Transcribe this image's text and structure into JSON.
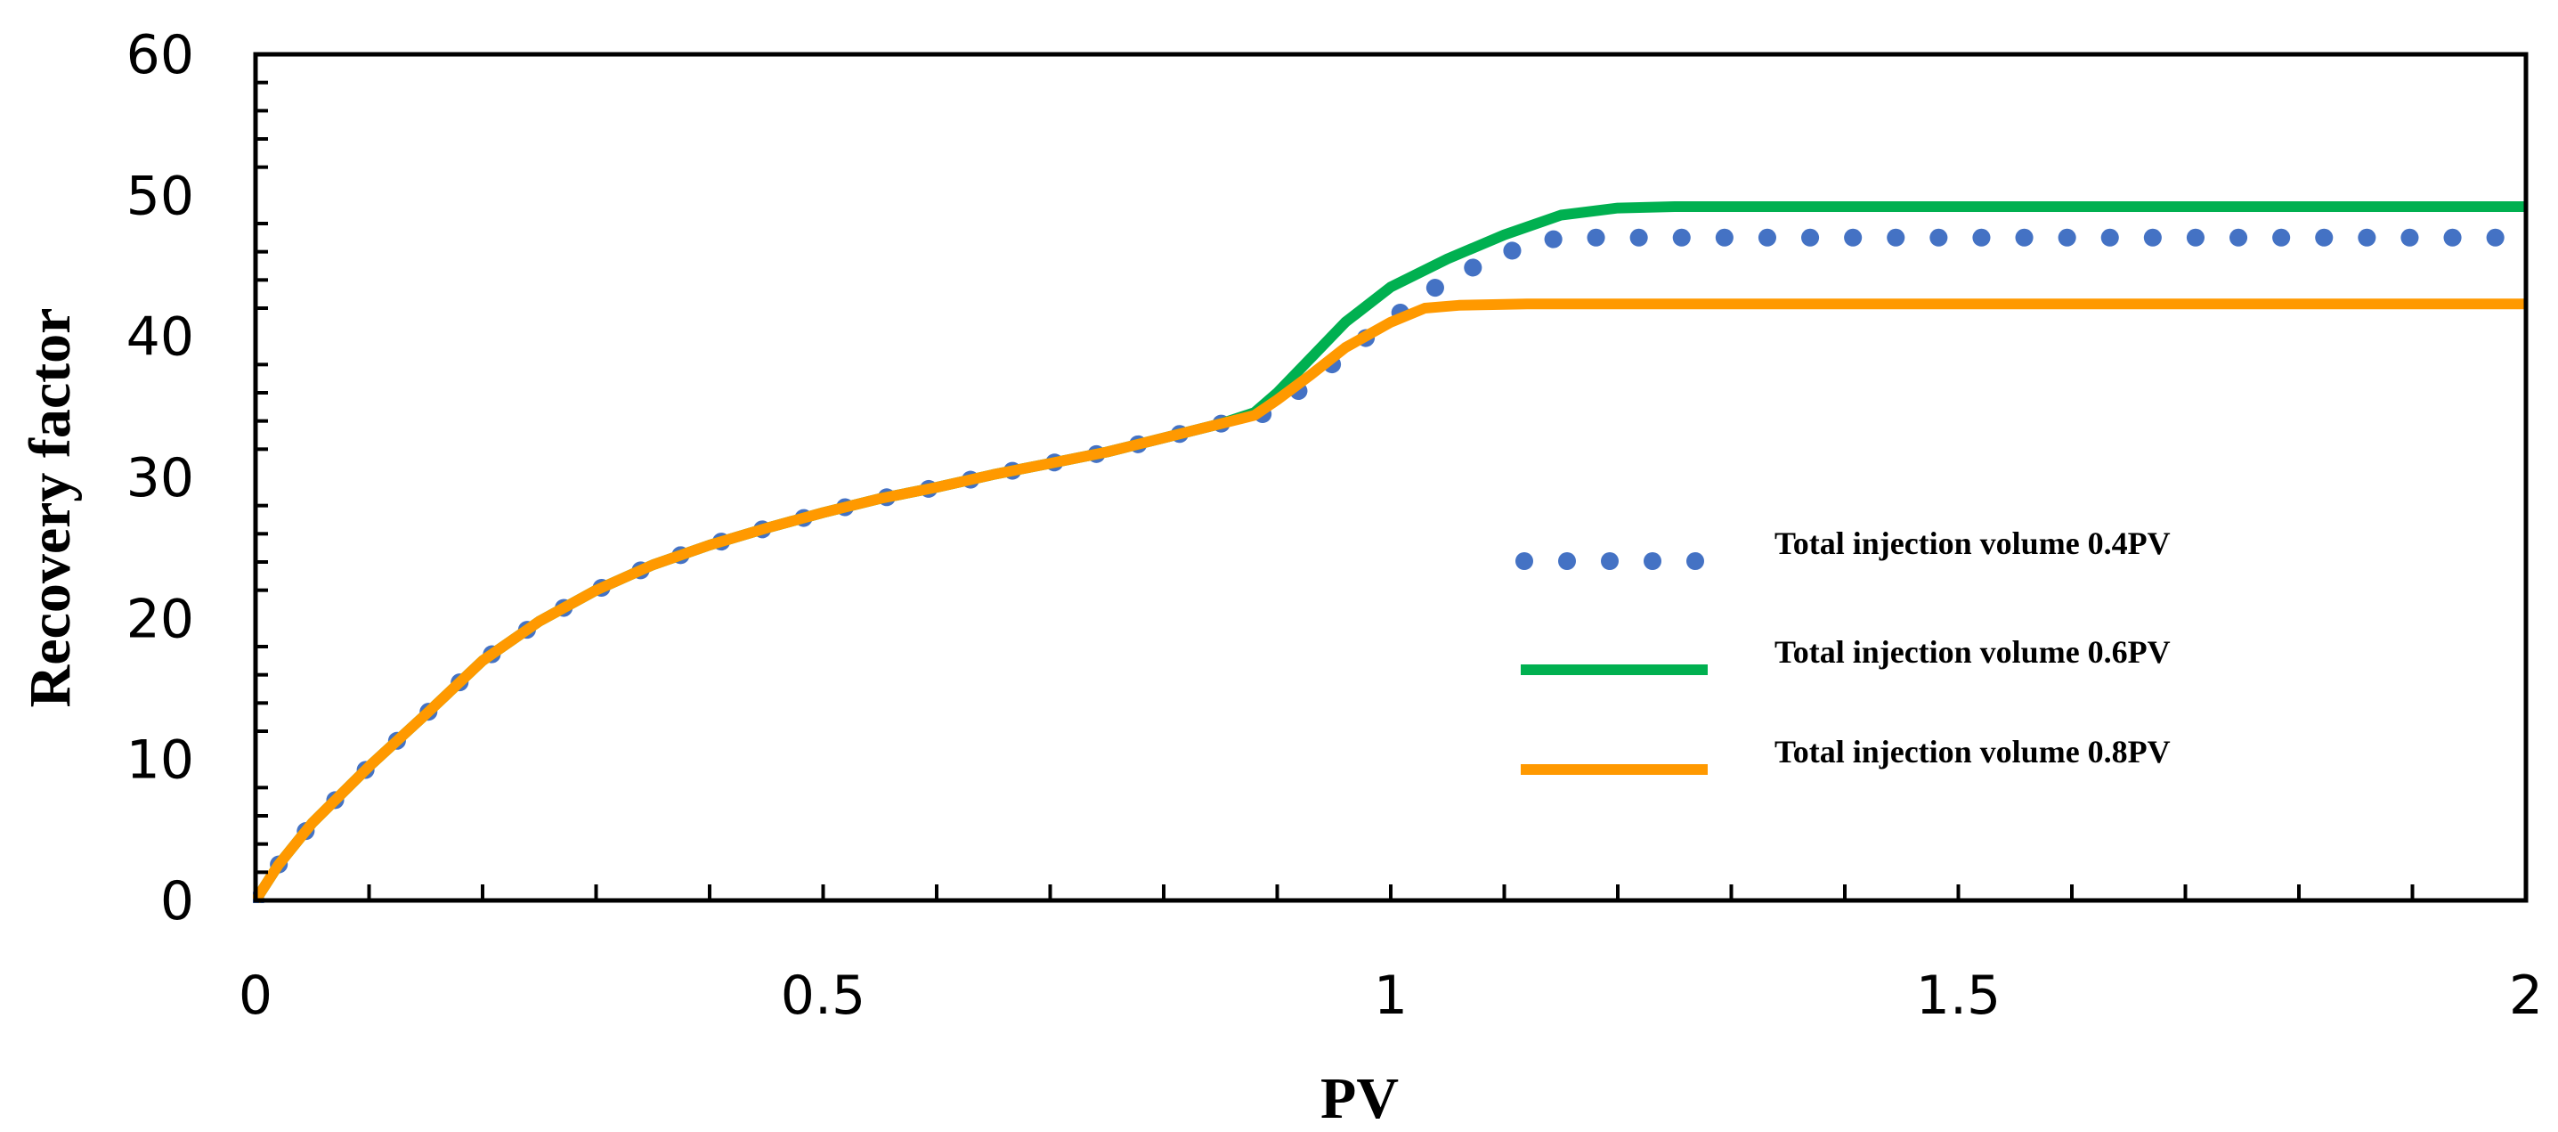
{
  "chart_data": {
    "type": "line",
    "title": "",
    "xlabel": "PV",
    "ylabel": "Recovery factor",
    "xlim": [
      0,
      2
    ],
    "ylim": [
      0,
      60
    ],
    "xticks": [
      0,
      0.5,
      1,
      1.5,
      2
    ],
    "xtick_labels": [
      "0",
      "0.5",
      "1",
      "1.5",
      "2"
    ],
    "yticks": [
      0,
      10,
      20,
      30,
      40,
      50,
      60
    ],
    "ytick_labels": [
      "0",
      "10",
      "20",
      "30",
      "40",
      "50",
      "60"
    ],
    "grid": false,
    "legend_position": "center-right",
    "series": [
      {
        "name": "Total injection volume 0.4PV",
        "style": "dotted",
        "color": "#4472C4",
        "x": [
          0,
          0.02,
          0.05,
          0.1,
          0.15,
          0.2,
          0.25,
          0.3,
          0.35,
          0.4,
          0.45,
          0.5,
          0.55,
          0.6,
          0.65,
          0.7,
          0.75,
          0.8,
          0.85,
          0.88,
          0.9,
          0.93,
          0.96,
          1.0,
          1.04,
          1.08,
          1.12,
          1.15,
          1.2,
          1.4,
          1.6,
          1.8,
          2.0
        ],
        "y": [
          0,
          2.5,
          5.5,
          9.5,
          13.2,
          17.0,
          19.8,
          22.0,
          23.8,
          25.2,
          26.4,
          27.5,
          28.5,
          29.3,
          30.2,
          31.0,
          31.8,
          32.8,
          33.8,
          34.2,
          35.0,
          36.8,
          38.8,
          41.2,
          43.5,
          45.2,
          46.5,
          47.0,
          47.0,
          47.0,
          47.0,
          47.0,
          47.0
        ]
      },
      {
        "name": "Total injection volume 0.6PV",
        "style": "solid",
        "color": "#00B050",
        "x": [
          0,
          0.02,
          0.05,
          0.1,
          0.15,
          0.2,
          0.25,
          0.3,
          0.35,
          0.4,
          0.45,
          0.5,
          0.55,
          0.6,
          0.65,
          0.7,
          0.75,
          0.8,
          0.85,
          0.88,
          0.9,
          0.93,
          0.96,
          1.0,
          1.05,
          1.1,
          1.15,
          1.2,
          1.25,
          1.5,
          1.75,
          2.0
        ],
        "y": [
          0,
          2.5,
          5.5,
          9.5,
          13.2,
          17.0,
          19.8,
          22.0,
          23.8,
          25.2,
          26.4,
          27.5,
          28.5,
          29.3,
          30.2,
          31.0,
          31.8,
          32.8,
          33.8,
          34.6,
          36.0,
          38.5,
          41.0,
          43.5,
          45.5,
          47.2,
          48.6,
          49.1,
          49.2,
          49.2,
          49.2,
          49.2
        ]
      },
      {
        "name": "Total injection volume 0.8PV",
        "style": "solid",
        "color": "#FF9900",
        "x": [
          0,
          0.02,
          0.05,
          0.1,
          0.15,
          0.2,
          0.25,
          0.3,
          0.35,
          0.4,
          0.45,
          0.5,
          0.55,
          0.6,
          0.65,
          0.7,
          0.75,
          0.8,
          0.85,
          0.88,
          0.9,
          0.93,
          0.96,
          1.0,
          1.03,
          1.06,
          1.12,
          1.5,
          2.0
        ],
        "y": [
          0,
          2.5,
          5.5,
          9.5,
          13.2,
          17.0,
          19.8,
          22.0,
          23.8,
          25.2,
          26.4,
          27.5,
          28.5,
          29.3,
          30.2,
          31.0,
          31.8,
          32.8,
          33.8,
          34.4,
          35.5,
          37.3,
          39.2,
          41.0,
          42.0,
          42.2,
          42.3,
          42.3,
          42.3
        ]
      }
    ]
  }
}
